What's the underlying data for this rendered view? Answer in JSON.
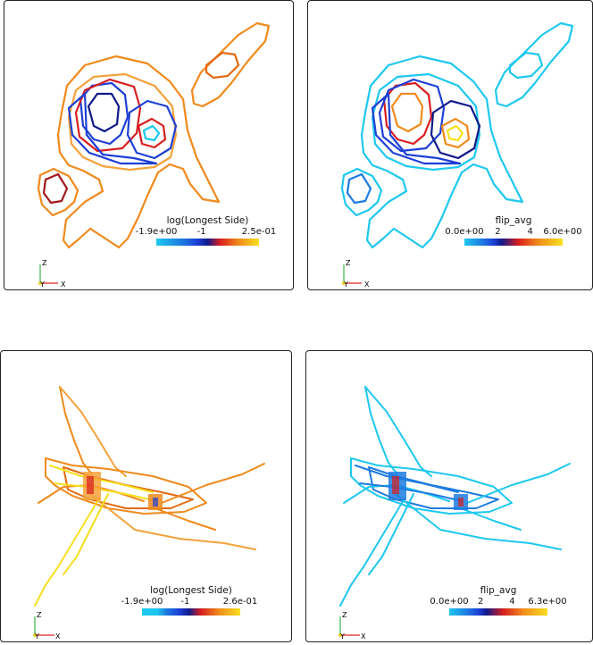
{
  "panels": [
    {
      "colorbar": {
        "title": "log(Longest Side)",
        "ticks": [
          "-1.9e+00",
          "-1",
          "2.5e-01"
        ]
      },
      "axes": {
        "z": "Z",
        "y": "Y",
        "x": "X"
      }
    },
    {
      "colorbar": {
        "title": "flip_avg",
        "ticks": [
          "0.0e+00",
          "2",
          "4",
          "6.0e+00"
        ]
      },
      "axes": {
        "z": "Z",
        "y": "Y",
        "x": "X"
      }
    },
    {
      "colorbar": {
        "title": "log(Longest Side)",
        "ticks": [
          "-1.9e+00",
          "-1",
          "2.6e-01"
        ]
      },
      "axes": {
        "z": "Z",
        "y": "Y",
        "x": "X"
      }
    },
    {
      "colorbar": {
        "title": "flip_avg",
        "ticks": [
          "0.0e+00",
          "2",
          "4",
          "6.3e+00"
        ]
      },
      "axes": {
        "z": "Z",
        "y": "Y",
        "x": "X"
      }
    }
  ],
  "colors": {
    "orange": "#f08a1c",
    "light_orange": "#f4a23a",
    "blue": "#1d3fd6",
    "dark_blue": "#101a8a",
    "cyan": "#1ec8f0",
    "red": "#d81e1e",
    "yellow": "#f6e020",
    "axis_green": "#39b54a",
    "axis_red": "#e02020",
    "axis_yellow": "#e8d020"
  }
}
